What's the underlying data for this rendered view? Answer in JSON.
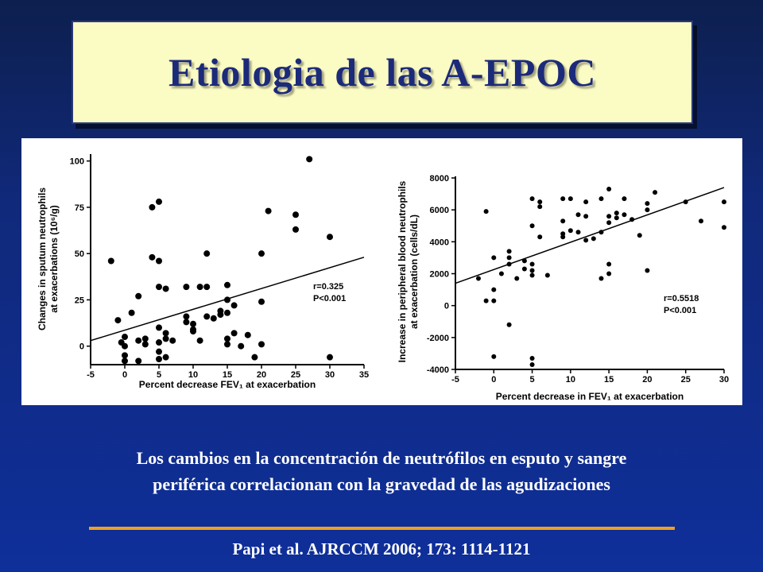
{
  "slide": {
    "title": "Etiologia de las A-EPOC",
    "caption_line1": "Los cambios en la concentración de neutrófilos en esputo y sangre",
    "caption_line2": "periférica correlacionan con la gravedad de las agudizaciones",
    "citation": "Papi et al. AJRCCM 2006; 173: 1114-1121",
    "colors": {
      "background": "#10297a",
      "title_box": "#fbfbc4",
      "title_text": "#1c2a7a",
      "divider": "#f0a020",
      "caption_text": "#ffffff"
    }
  },
  "chart_data": [
    {
      "type": "scatter",
      "ylabel_line1": "Changes in sputum neutrophils",
      "ylabel_line2": "at exacerbations (10⁶/g)",
      "xlabel": "Percent decrease FEV₁ at exacerbation",
      "xlim": [
        -5,
        35
      ],
      "ylim": [
        -10,
        105
      ],
      "xticks": [
        -5,
        0,
        5,
        10,
        15,
        20,
        25,
        30,
        35
      ],
      "yticks": [
        0,
        25,
        50,
        75,
        100
      ],
      "annotation_line1": "r=0.325",
      "annotation_line2": "P<0.001",
      "trendline": {
        "x": [
          -5,
          35
        ],
        "y": [
          3,
          48
        ]
      },
      "points": [
        [
          -2,
          46
        ],
        [
          -1,
          14
        ],
        [
          -0.5,
          2
        ],
        [
          0,
          5
        ],
        [
          0,
          0
        ],
        [
          0,
          -5
        ],
        [
          0,
          -8
        ],
        [
          1,
          18
        ],
        [
          2,
          27
        ],
        [
          2,
          3
        ],
        [
          2,
          -8
        ],
        [
          3,
          4
        ],
        [
          3,
          1
        ],
        [
          4,
          75
        ],
        [
          4,
          48
        ],
        [
          5,
          78
        ],
        [
          5,
          46
        ],
        [
          5,
          32
        ],
        [
          5,
          10
        ],
        [
          5,
          2
        ],
        [
          5,
          -3
        ],
        [
          5,
          -7
        ],
        [
          6,
          31
        ],
        [
          6,
          7
        ],
        [
          6,
          4
        ],
        [
          6,
          -6
        ],
        [
          7,
          3
        ],
        [
          9,
          32
        ],
        [
          9,
          16
        ],
        [
          9,
          13
        ],
        [
          10,
          12
        ],
        [
          10,
          9
        ],
        [
          10,
          8
        ],
        [
          11,
          32
        ],
        [
          11,
          3
        ],
        [
          12,
          50
        ],
        [
          12,
          32
        ],
        [
          12,
          16
        ],
        [
          13,
          15
        ],
        [
          14,
          19
        ],
        [
          14,
          17
        ],
        [
          15,
          33
        ],
        [
          15,
          25
        ],
        [
          15,
          18
        ],
        [
          15,
          4
        ],
        [
          15,
          1
        ],
        [
          16,
          22
        ],
        [
          16,
          7
        ],
        [
          17,
          0
        ],
        [
          18,
          6
        ],
        [
          19,
          -6
        ],
        [
          20,
          50
        ],
        [
          20,
          24
        ],
        [
          20,
          1
        ],
        [
          21,
          73
        ],
        [
          25,
          71
        ],
        [
          25,
          63
        ],
        [
          27,
          101
        ],
        [
          30,
          59
        ],
        [
          30,
          -6
        ]
      ]
    },
    {
      "type": "scatter",
      "ylabel_line1": "Increase in peripheral blood neutrophils",
      "ylabel_line2": "at exacerbation (cells/dL)",
      "xlabel": "Percent decrease in FEV₁ at exacerbation",
      "xlim": [
        -5,
        30
      ],
      "ylim": [
        -4000,
        8000
      ],
      "xticks": [
        -5,
        0,
        5,
        10,
        15,
        20,
        25,
        30
      ],
      "yticks": [
        -4000,
        -2000,
        0,
        2000,
        4000,
        6000,
        8000
      ],
      "annotation_line1": "r=0.5518",
      "annotation_line2": "P<0.001",
      "trendline": {
        "x": [
          -5,
          30
        ],
        "y": [
          1400,
          7400
        ]
      },
      "points": [
        [
          -2,
          1700
        ],
        [
          -1,
          5900
        ],
        [
          -1,
          300
        ],
        [
          0,
          3000
        ],
        [
          0,
          1000
        ],
        [
          0,
          300
        ],
        [
          0,
          -3200
        ],
        [
          1,
          2000
        ],
        [
          2,
          3400
        ],
        [
          2,
          3000
        ],
        [
          2,
          2600
        ],
        [
          2,
          -1200
        ],
        [
          3,
          1700
        ],
        [
          4,
          2800
        ],
        [
          4,
          2300
        ],
        [
          5,
          6700
        ],
        [
          5,
          5000
        ],
        [
          5,
          2600
        ],
        [
          5,
          2200
        ],
        [
          5,
          1900
        ],
        [
          5,
          -3300
        ],
        [
          5,
          -3700
        ],
        [
          6,
          6500
        ],
        [
          6,
          6200
        ],
        [
          6,
          4300
        ],
        [
          7,
          1900
        ],
        [
          9,
          6700
        ],
        [
          9,
          5300
        ],
        [
          9,
          4500
        ],
        [
          9,
          4300
        ],
        [
          10,
          6700
        ],
        [
          10,
          4700
        ],
        [
          11,
          5700
        ],
        [
          11,
          4600
        ],
        [
          12,
          6500
        ],
        [
          12,
          5600
        ],
        [
          12,
          4100
        ],
        [
          13,
          4200
        ],
        [
          14,
          6700
        ],
        [
          14,
          4600
        ],
        [
          14,
          1700
        ],
        [
          15,
          7300
        ],
        [
          15,
          5600
        ],
        [
          15,
          5200
        ],
        [
          15,
          2600
        ],
        [
          15,
          2000
        ],
        [
          16,
          5800
        ],
        [
          16,
          5500
        ],
        [
          17,
          6700
        ],
        [
          17,
          5700
        ],
        [
          18,
          5400
        ],
        [
          19,
          4400
        ],
        [
          20,
          6400
        ],
        [
          20,
          6000
        ],
        [
          20,
          2200
        ],
        [
          21,
          7100
        ],
        [
          25,
          6500
        ],
        [
          27,
          5300
        ],
        [
          30,
          6500
        ],
        [
          30,
          4900
        ]
      ]
    }
  ]
}
